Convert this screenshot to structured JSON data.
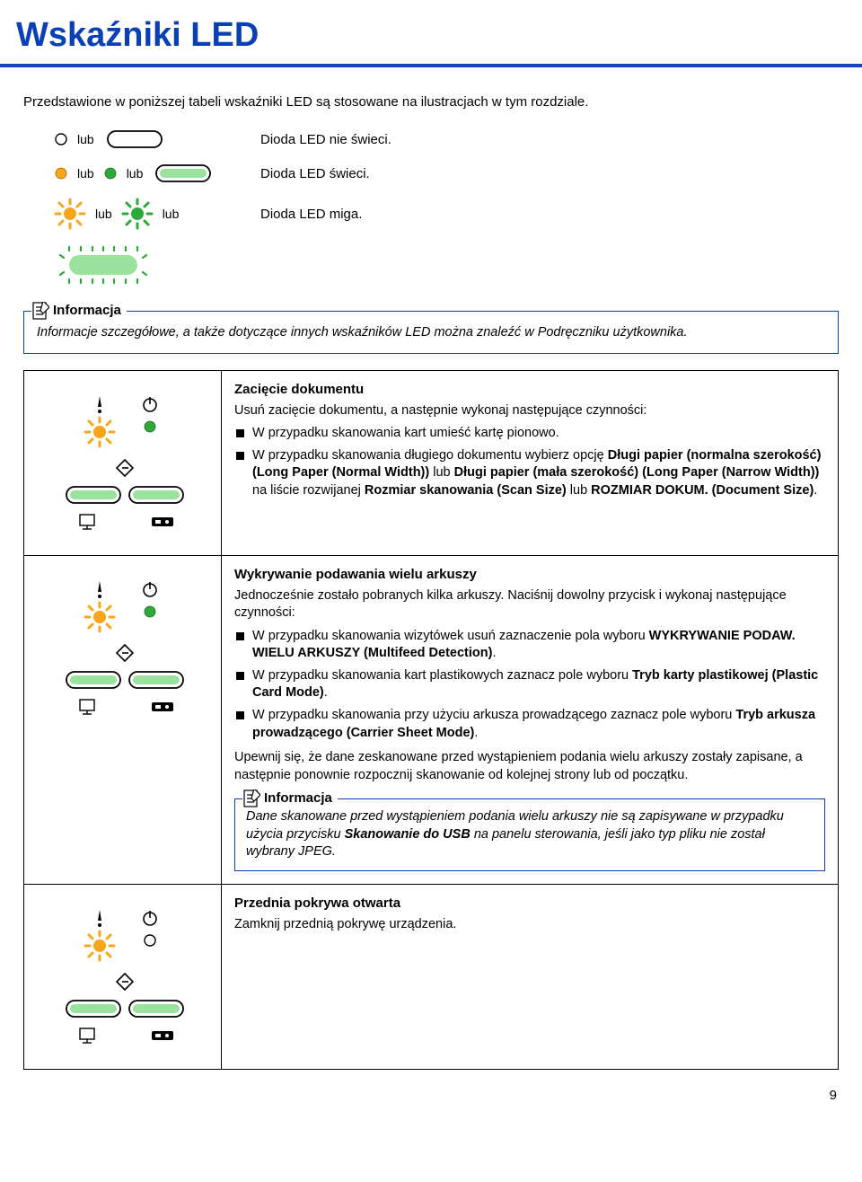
{
  "page_number": "9",
  "header": {
    "title": "Wskaźniki LED"
  },
  "intro": "Przedstawione w poniższej tabeli wskaźniki LED są stosowane na ilustracjach w tym rozdziale.",
  "legend": {
    "or_word": "lub",
    "rows": [
      {
        "desc": "Dioda LED nie świeci."
      },
      {
        "desc": "Dioda LED świeci."
      },
      {
        "desc": "Dioda LED miga."
      }
    ]
  },
  "info_label": "Informacja",
  "info_text": "Informacje szczegółowe, a także dotyczące innych wskaźników LED można znaleźć w Podręczniku użytkownika.",
  "colors": {
    "accent": "#0a3fb8",
    "orange": "#f7a61b",
    "green": "#2fa83a"
  },
  "cases": [
    {
      "title": "Zacięcie dokumentu",
      "lead": "Usuń zacięcie dokumentu, a następnie wykonaj następujące czynności:",
      "items": [
        "W przypadku skanowania kart umieść kartę pionowo.",
        "W przypadku skanowania długiego dokumentu wybierz opcję <b>Długi papier (normalna szerokość) (Long Paper (Normal Width))</b> lub <b>Długi papier (mała szerokość) (Long Paper (Narrow Width))</b> na liście rozwijanej <b>Rozmiar skanowania (Scan Size)</b> lub <b>ROZMIAR DOKUM. (Document Size)</b>."
      ],
      "power_on": true
    },
    {
      "title": "Wykrywanie podawania wielu arkuszy",
      "lead": "Jednocześnie zostało pobranych kilka arkuszy. Naciśnij dowolny przycisk i wykonaj następujące czynności:",
      "items": [
        "W przypadku skanowania wizytówek usuń zaznaczenie pola wyboru <b>WYKRYWANIE PODAW. WIELU ARKUSZY (Multifeed Detection)</b>.",
        "W przypadku skanowania kart plastikowych zaznacz pole wyboru <b>Tryb karty plastikowej (Plastic Card Mode)</b>.",
        "W przypadku skanowania przy użyciu arkusza prowadzącego zaznacz pole wyboru <b>Tryb arkusza prowadzącego (Carrier Sheet Mode)</b>."
      ],
      "trail": "Upewnij się, że dane zeskanowane przed wystąpieniem podania wielu arkuszy zostały zapisane, a następnie ponownie rozpocznij skanowanie od kolejnej strony lub od początku.",
      "nested_info": "Dane skanowane przed wystąpieniem podania wielu arkuszy nie są zapisywane w przypadku użycia przycisku <b>Skanowanie do USB</b> na panelu sterowania, jeśli jako typ pliku nie został wybrany JPEG.",
      "power_on": true
    },
    {
      "title": "Przednia pokrywa otwarta",
      "lead": "Zamknij przednią pokrywę urządzenia.",
      "items": [],
      "power_on": false
    }
  ]
}
